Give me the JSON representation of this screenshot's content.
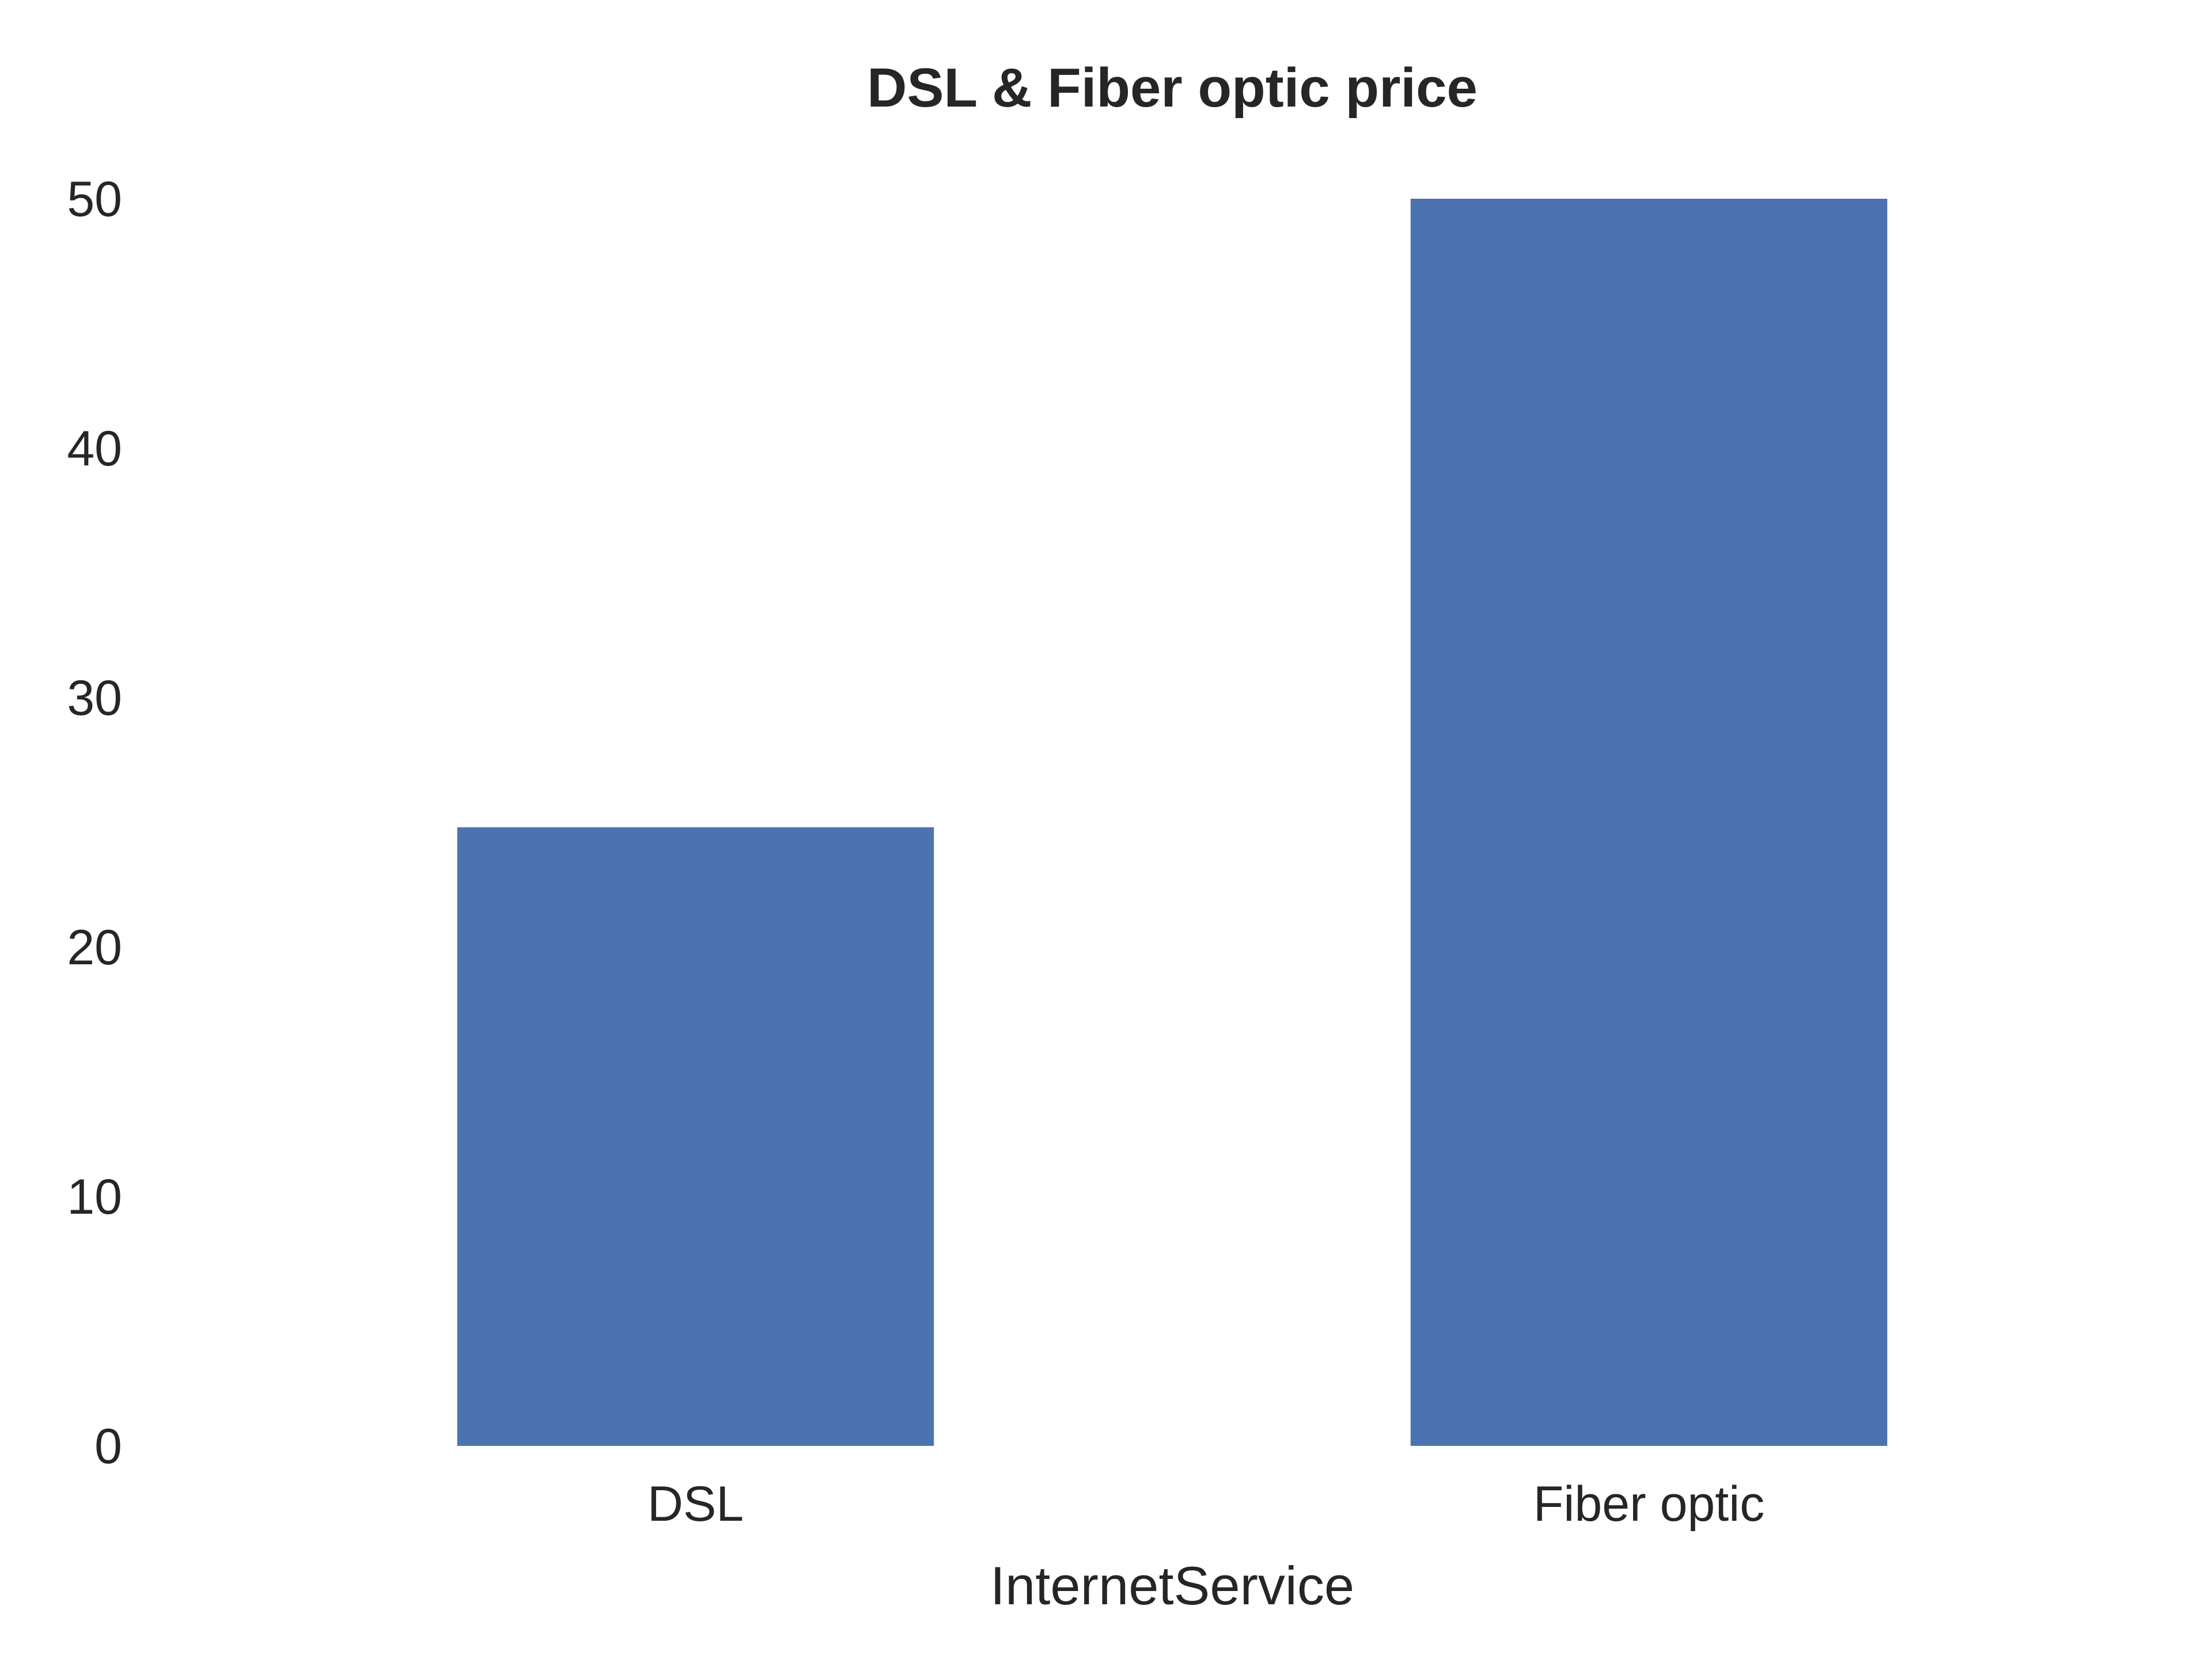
{
  "chart_data": {
    "type": "bar",
    "title": "DSL & Fiber optic price",
    "xlabel": "InternetService",
    "ylabel": "",
    "categories": [
      "DSL",
      "Fiber optic"
    ],
    "values": [
      24.8,
      50.0
    ],
    "ylim": [
      0,
      50
    ],
    "yticks": [
      0,
      10,
      20,
      30,
      40,
      50
    ],
    "ytick_labels": [
      "0",
      "10",
      "20",
      "30",
      "40",
      "50"
    ],
    "grid": false,
    "legend": "none",
    "bar_color": "#4c72b0"
  }
}
